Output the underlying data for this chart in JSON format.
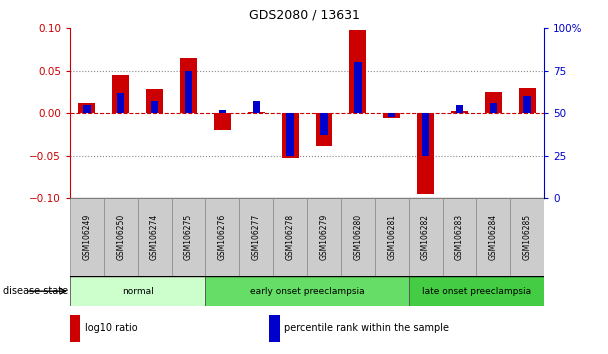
{
  "title": "GDS2080 / 13631",
  "samples": [
    "GSM106249",
    "GSM106250",
    "GSM106274",
    "GSM106275",
    "GSM106276",
    "GSM106277",
    "GSM106278",
    "GSM106279",
    "GSM106280",
    "GSM106281",
    "GSM106282",
    "GSM106283",
    "GSM106284",
    "GSM106285"
  ],
  "log10_ratio": [
    0.012,
    0.045,
    0.028,
    0.065,
    -0.02,
    0.002,
    -0.053,
    -0.038,
    0.098,
    -0.005,
    -0.095,
    0.003,
    0.025,
    0.03
  ],
  "percentile_rank": [
    55,
    62,
    57,
    75,
    52,
    57,
    25,
    37,
    80,
    48,
    25,
    55,
    56,
    60
  ],
  "ylim_left": [
    -0.1,
    0.1
  ],
  "ylim_right": [
    0,
    100
  ],
  "yticks_left": [
    -0.1,
    -0.05,
    0,
    0.05,
    0.1
  ],
  "yticks_right": [
    0,
    25,
    50,
    75,
    100
  ],
  "red_color": "#cc0000",
  "blue_color": "#0000cc",
  "groups": [
    {
      "label": "normal",
      "start": 0,
      "end": 3,
      "color": "#ccffcc"
    },
    {
      "label": "early onset preeclampsia",
      "start": 4,
      "end": 9,
      "color": "#66dd66"
    },
    {
      "label": "late onset preeclampsia",
      "start": 10,
      "end": 13,
      "color": "#44cc44"
    }
  ],
  "legend_items": [
    {
      "label": "log10 ratio",
      "color": "#cc0000"
    },
    {
      "label": "percentile rank within the sample",
      "color": "#0000cc"
    }
  ],
  "disease_state_label": "disease state",
  "tick_box_color": "#cccccc",
  "bg_color": "#ffffff"
}
